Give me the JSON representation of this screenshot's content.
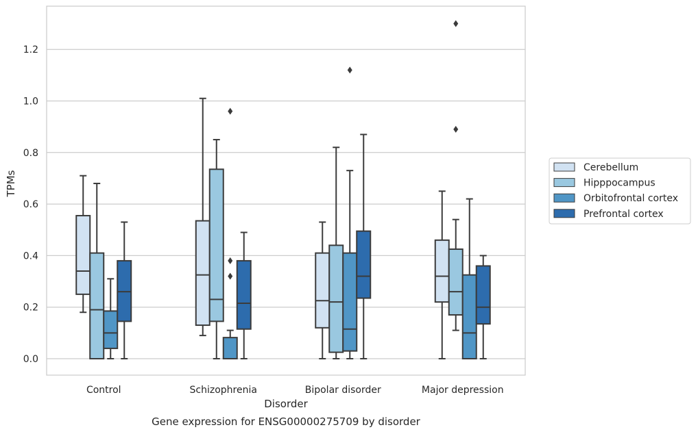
{
  "chart_data": {
    "type": "box",
    "title": "Gene expression for ENSG00000275709 by disorder",
    "xlabel": "Disorder",
    "ylabel": "TPMs",
    "ylim": [
      -0.065,
      1.37
    ],
    "yticks": [
      "0.0",
      "0.2",
      "0.4",
      "0.6",
      "0.8",
      "1.0",
      "1.2"
    ],
    "grid": "horizontal",
    "legend_position": "right",
    "categories": [
      "Control",
      "Schizophrenia",
      "Bipolar disorder",
      "Major depression"
    ],
    "series": [
      {
        "name": "Cerebellum",
        "color": "#d1e2f2",
        "boxes": [
          {
            "whislo": 0.18,
            "q1": 0.25,
            "med": 0.34,
            "q3": 0.555,
            "whishi": 0.71,
            "fliers": []
          },
          {
            "whislo": 0.09,
            "q1": 0.13,
            "med": 0.325,
            "q3": 0.535,
            "whishi": 1.01,
            "fliers": []
          },
          {
            "whislo": 0.0,
            "q1": 0.12,
            "med": 0.225,
            "q3": 0.41,
            "whishi": 0.53,
            "fliers": []
          },
          {
            "whislo": 0.0,
            "q1": 0.22,
            "med": 0.32,
            "q3": 0.46,
            "whishi": 0.65,
            "fliers": []
          }
        ]
      },
      {
        "name": "Hipppocampus",
        "color": "#9ac8e0",
        "boxes": [
          {
            "whislo": 0.0,
            "q1": 0.0,
            "med": 0.19,
            "q3": 0.41,
            "whishi": 0.68,
            "fliers": []
          },
          {
            "whislo": 0.0,
            "q1": 0.145,
            "med": 0.23,
            "q3": 0.735,
            "whishi": 0.85,
            "fliers": []
          },
          {
            "whislo": 0.0,
            "q1": 0.025,
            "med": 0.22,
            "q3": 0.44,
            "whishi": 0.82,
            "fliers": []
          },
          {
            "whislo": 0.11,
            "q1": 0.17,
            "med": 0.26,
            "q3": 0.425,
            "whishi": 0.54,
            "fliers": [
              0.89,
              1.3
            ]
          }
        ]
      },
      {
        "name": "Orbitofrontal cortex",
        "color": "#5096c6",
        "boxes": [
          {
            "whislo": 0.0,
            "q1": 0.04,
            "med": 0.1,
            "q3": 0.185,
            "whishi": 0.31,
            "fliers": []
          },
          {
            "whislo": 0.0,
            "q1": 0.0,
            "med": 0.0,
            "q3": 0.082,
            "whishi": 0.11,
            "fliers": [
              0.32,
              0.38,
              0.96
            ]
          },
          {
            "whislo": 0.0,
            "q1": 0.03,
            "med": 0.115,
            "q3": 0.41,
            "whishi": 0.73,
            "fliers": [
              1.12
            ]
          },
          {
            "whislo": 0.0,
            "q1": 0.0,
            "med": 0.1,
            "q3": 0.325,
            "whishi": 0.62,
            "fliers": []
          }
        ]
      },
      {
        "name": "Prefrontal cortex",
        "color": "#2d6cad",
        "boxes": [
          {
            "whislo": 0.0,
            "q1": 0.145,
            "med": 0.26,
            "q3": 0.38,
            "whishi": 0.53,
            "fliers": []
          },
          {
            "whislo": 0.0,
            "q1": 0.115,
            "med": 0.215,
            "q3": 0.38,
            "whishi": 0.49,
            "fliers": []
          },
          {
            "whislo": 0.0,
            "q1": 0.235,
            "med": 0.32,
            "q3": 0.495,
            "whishi": 0.87,
            "fliers": []
          },
          {
            "whislo": 0.0,
            "q1": 0.135,
            "med": 0.2,
            "q3": 0.36,
            "whishi": 0.4,
            "fliers": []
          }
        ]
      }
    ]
  }
}
